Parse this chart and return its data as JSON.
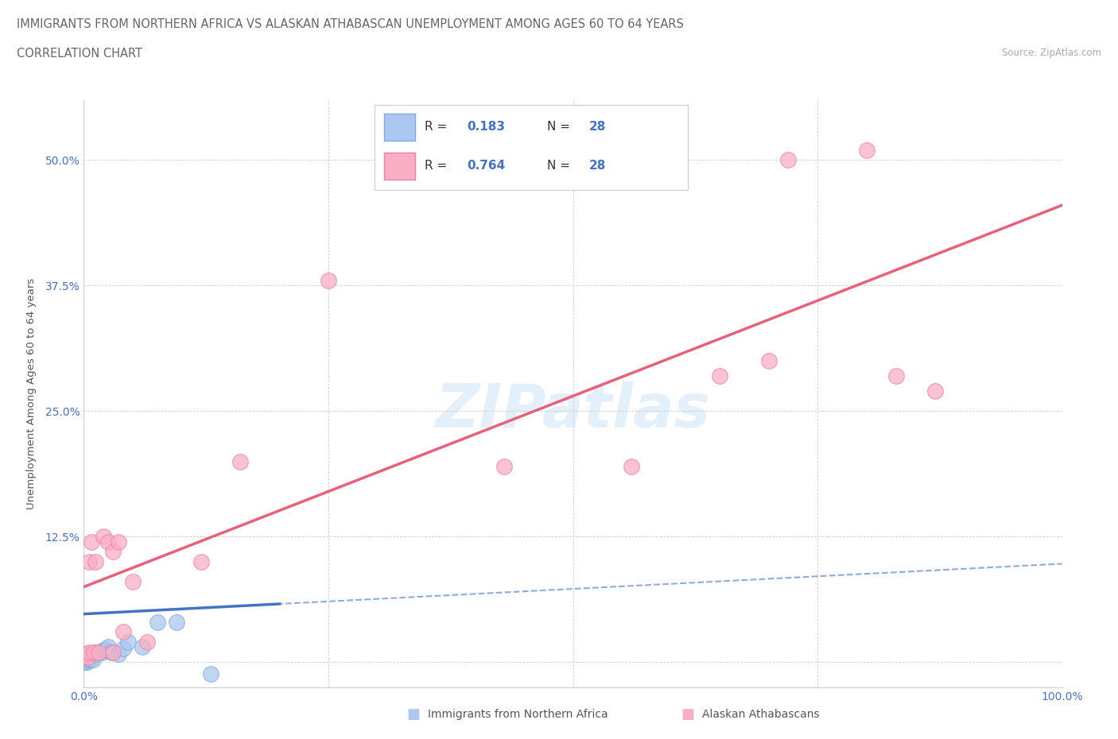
{
  "title": "IMMIGRANTS FROM NORTHERN AFRICA VS ALASKAN ATHABASCAN UNEMPLOYMENT AMONG AGES 60 TO 64 YEARS",
  "subtitle": "CORRELATION CHART",
  "source": "Source: ZipAtlas.com",
  "ylabel": "Unemployment Among Ages 60 to 64 years",
  "xlim": [
    0,
    1.0
  ],
  "ylim": [
    -0.025,
    0.56
  ],
  "xticks": [
    0.0,
    0.25,
    0.5,
    0.75,
    1.0
  ],
  "xticklabels": [
    "0.0%",
    "",
    "",
    "",
    "100.0%"
  ],
  "yticks": [
    0.0,
    0.125,
    0.25,
    0.375,
    0.5
  ],
  "yticklabels": [
    "",
    "12.5%",
    "25.0%",
    "37.5%",
    "50.0%"
  ],
  "blue_R": "0.183",
  "blue_N": "28",
  "pink_R": "0.764",
  "pink_N": "28",
  "blue_color": "#adc8f0",
  "pink_color": "#f9aec5",
  "blue_edge_color": "#7aaae0",
  "pink_edge_color": "#f080a0",
  "blue_line_color": "#4472c4",
  "pink_line_color": "#e8607a",
  "watermark": "ZIPatlas",
  "blue_points_x": [
    0.001,
    0.001,
    0.002,
    0.003,
    0.003,
    0.004,
    0.005,
    0.005,
    0.006,
    0.007,
    0.008,
    0.009,
    0.01,
    0.012,
    0.015,
    0.018,
    0.02,
    0.022,
    0.025,
    0.028,
    0.03,
    0.035,
    0.04,
    0.045,
    0.06,
    0.075,
    0.095,
    0.13
  ],
  "blue_points_y": [
    0.0,
    0.002,
    0.0,
    0.0,
    0.003,
    0.005,
    0.004,
    0.005,
    0.003,
    0.005,
    0.005,
    0.003,
    0.01,
    0.008,
    0.01,
    0.01,
    0.012,
    0.013,
    0.015,
    0.01,
    0.01,
    0.008,
    0.014,
    0.02,
    0.015,
    0.04,
    0.04,
    -0.012
  ],
  "pink_points_x": [
    0.001,
    0.002,
    0.004,
    0.005,
    0.005,
    0.008,
    0.01,
    0.012,
    0.015,
    0.02,
    0.025,
    0.03,
    0.03,
    0.035,
    0.04,
    0.05,
    0.065,
    0.12,
    0.16,
    0.25,
    0.43,
    0.56,
    0.65,
    0.7,
    0.72,
    0.8,
    0.83,
    0.87
  ],
  "pink_points_y": [
    0.005,
    0.008,
    0.005,
    0.01,
    0.1,
    0.12,
    0.01,
    0.1,
    0.01,
    0.125,
    0.12,
    0.01,
    0.11,
    0.12,
    0.03,
    0.08,
    0.02,
    0.1,
    0.2,
    0.38,
    0.195,
    0.195,
    0.285,
    0.3,
    0.5,
    0.51,
    0.285,
    0.27
  ],
  "blue_trend_x0": 0.0,
  "blue_trend_y0": 0.048,
  "blue_trend_x1": 0.2,
  "blue_trend_y1": 0.058,
  "pink_trend_x0": 0.0,
  "pink_trend_y0": 0.075,
  "pink_trend_x1": 1.0,
  "pink_trend_y1": 0.455
}
